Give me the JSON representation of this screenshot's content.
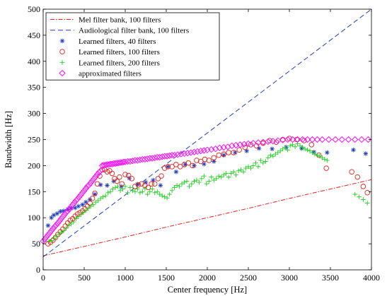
{
  "chart_data": {
    "type": "scatter",
    "title": "",
    "xlabel": "Center frequency [Hz]",
    "ylabel": "Bandwidth [Hz]",
    "xlim": [
      0,
      4000
    ],
    "ylim": [
      0,
      500
    ],
    "x_ticks": [
      0,
      500,
      1000,
      1500,
      2000,
      2500,
      3000,
      3500,
      4000
    ],
    "y_ticks": [
      0,
      50,
      100,
      150,
      200,
      250,
      300,
      350,
      400,
      450,
      500
    ],
    "x_tick_labels": [
      "0",
      "500",
      "1000",
      "1500",
      "2000",
      "2500",
      "3000",
      "3500",
      "4000"
    ],
    "y_tick_labels": [
      "0",
      "50",
      "100",
      "150",
      "200",
      "250",
      "300",
      "350",
      "400",
      "450",
      "500"
    ],
    "grid": false,
    "legend_position": "top-left",
    "series": [
      {
        "name": "Mel filter bank, 100 filters",
        "kind": "line",
        "linestyle": "dashdot",
        "color": "#e3211c",
        "x": [
          0,
          500,
          1000,
          1500,
          2000,
          2500,
          3000,
          3500,
          4000
        ],
        "y": [
          27,
          45,
          63,
          82,
          100,
          118,
          137,
          155,
          173
        ]
      },
      {
        "name": "Audiological filter bank, 100 filters",
        "kind": "line",
        "linestyle": "dashed",
        "color": "#1f3fbf",
        "x": [
          0,
          4000
        ],
        "y": [
          25,
          500
        ]
      },
      {
        "name": "Learned filters, 40 filters",
        "kind": "scatter",
        "marker": "asterisk",
        "color": "#1f3fbf",
        "x": [
          60,
          100,
          130,
          170,
          210,
          250,
          300,
          340,
          390,
          430,
          480,
          520,
          570,
          630,
          700,
          780,
          860,
          950,
          1050,
          1150,
          1250,
          1340,
          1430,
          1520,
          1620,
          1730,
          1840,
          1960,
          2080,
          2200,
          2340,
          2480,
          2630,
          2790,
          2960,
          3150,
          3300,
          3460,
          3780,
          3930
        ],
        "y": [
          85,
          100,
          105,
          108,
          112,
          113,
          116,
          118,
          119,
          122,
          125,
          130,
          135,
          145,
          163,
          162,
          170,
          160,
          176,
          164,
          168,
          172,
          162,
          198,
          188,
          202,
          200,
          203,
          208,
          220,
          225,
          228,
          233,
          232,
          235,
          233,
          226,
          225,
          230,
          223
        ]
      },
      {
        "name": "Learned filters, 100 filters",
        "kind": "scatter",
        "marker": "circle",
        "color": "#e3211c",
        "x": [
          60,
          90,
          120,
          150,
          180,
          210,
          240,
          270,
          300,
          330,
          360,
          390,
          420,
          450,
          480,
          510,
          540,
          570,
          600,
          630,
          660,
          690,
          720,
          750,
          780,
          810,
          840,
          870,
          900,
          930,
          960,
          1000,
          1040,
          1080,
          1120,
          1160,
          1200,
          1240,
          1280,
          1320,
          1360,
          1400,
          1440,
          1480,
          1520,
          1570,
          1620,
          1670,
          1720,
          1770,
          1820,
          1870,
          1920,
          1970,
          2020,
          2080,
          2140,
          2200,
          2260,
          2320,
          2390,
          2460,
          2530,
          2600,
          2680,
          2760,
          2840,
          2920,
          3000,
          3090,
          3180,
          3270,
          3360,
          3450,
          3760,
          3830,
          3900,
          3950
        ],
        "y": [
          50,
          53,
          57,
          62,
          68,
          73,
          78,
          84,
          90,
          95,
          98,
          103,
          107,
          110,
          113,
          117,
          122,
          128,
          137,
          147,
          165,
          180,
          192,
          192,
          188,
          190,
          185,
          175,
          170,
          178,
          165,
          183,
          181,
          175,
          160,
          163,
          165,
          162,
          158,
          165,
          165,
          175,
          180,
          195,
          198,
          198,
          202,
          198,
          202,
          205,
          200,
          210,
          208,
          212,
          210,
          215,
          220,
          222,
          225,
          225,
          230,
          235,
          240,
          238,
          243,
          248,
          245,
          250,
          252,
          250,
          248,
          240,
          220,
          195,
          188,
          178,
          160,
          148
        ]
      },
      {
        "name": "Learned filters, 200 filters",
        "kind": "scatter",
        "marker": "plus",
        "color": "#1fcc1f",
        "x": [
          70,
          100,
          130,
          160,
          190,
          220,
          250,
          280,
          310,
          340,
          370,
          400,
          430,
          460,
          490,
          520,
          550,
          580,
          610,
          640,
          670,
          700,
          730,
          760,
          790,
          820,
          850,
          880,
          910,
          940,
          970,
          1000,
          1030,
          1060,
          1090,
          1120,
          1150,
          1180,
          1210,
          1240,
          1270,
          1300,
          1330,
          1360,
          1390,
          1420,
          1450,
          1480,
          1510,
          1540,
          1570,
          1600,
          1630,
          1660,
          1690,
          1720,
          1750,
          1780,
          1810,
          1840,
          1870,
          1900,
          1930,
          1960,
          1990,
          2020,
          2050,
          2080,
          2110,
          2140,
          2170,
          2200,
          2230,
          2260,
          2290,
          2320,
          2350,
          2380,
          2410,
          2440,
          2470,
          2500,
          2530,
          2560,
          2590,
          2620,
          2650,
          2680,
          2710,
          2740,
          2770,
          2800,
          2830,
          2860,
          2890,
          2920,
          2950,
          2980,
          3010,
          3040,
          3070,
          3100,
          3130,
          3160,
          3190,
          3220,
          3250,
          3280,
          3310,
          3340,
          3370,
          3400,
          3430,
          3460,
          3800,
          3850,
          3900,
          3950
        ],
        "y": [
          55,
          56,
          60,
          64,
          68,
          72,
          75,
          80,
          85,
          88,
          92,
          98,
          102,
          106,
          110,
          114,
          118,
          122,
          125,
          130,
          133,
          137,
          140,
          142,
          148,
          150,
          155,
          158,
          160,
          152,
          155,
          160,
          148,
          158,
          152,
          150,
          155,
          148,
          150,
          156,
          145,
          150,
          155,
          148,
          150,
          145,
          142,
          140,
          138,
          145,
          152,
          158,
          162,
          160,
          165,
          168,
          170,
          160,
          165,
          170,
          172,
          168,
          175,
          180,
          165,
          170,
          178,
          172,
          175,
          180,
          178,
          182,
          185,
          178,
          185,
          188,
          182,
          190,
          192,
          188,
          195,
          198,
          195,
          200,
          205,
          198,
          210,
          205,
          208,
          215,
          220,
          218,
          222,
          225,
          228,
          232,
          235,
          230,
          238,
          240,
          236,
          242,
          238,
          235,
          232,
          230,
          228,
          225,
          222,
          220,
          218,
          215,
          212,
          210,
          145,
          140,
          135,
          128
        ]
      },
      {
        "name": "approximated filters",
        "kind": "scatter",
        "marker": "diamond",
        "color": "#ff00ff",
        "x": [
          0,
          20,
          40,
          60,
          80,
          100,
          120,
          140,
          160,
          180,
          200,
          220,
          240,
          260,
          280,
          300,
          320,
          340,
          360,
          380,
          400,
          420,
          440,
          460,
          480,
          500,
          520,
          540,
          560,
          580,
          600,
          620,
          640,
          660,
          680,
          700,
          720,
          740,
          760,
          780,
          800,
          820,
          840,
          860,
          880,
          900,
          920,
          940,
          960,
          980,
          1000,
          1030,
          1060,
          1090,
          1120,
          1150,
          1180,
          1210,
          1240,
          1270,
          1300,
          1330,
          1360,
          1390,
          1420,
          1450,
          1480,
          1510,
          1540,
          1570,
          1600,
          1640,
          1680,
          1720,
          1760,
          1800,
          1840,
          1880,
          1920,
          1960,
          2000,
          2050,
          2100,
          2150,
          2200,
          2250,
          2300,
          2350,
          2400,
          2450,
          2500,
          2560,
          2620,
          2680,
          2740,
          2800,
          2860,
          2920,
          2980,
          3040,
          3100,
          3160,
          3220,
          3280,
          3340,
          3400,
          3480,
          3560,
          3640,
          3720,
          3800,
          3880,
          3960
        ],
        "y": [
          55,
          59,
          63,
          67,
          71,
          75,
          79,
          83,
          86,
          90,
          94,
          98,
          102,
          106,
          110,
          113,
          117,
          121,
          125,
          129,
          133,
          136,
          140,
          144,
          148,
          152,
          156,
          160,
          163,
          167,
          171,
          175,
          179,
          183,
          187,
          190,
          200,
          201,
          201,
          202,
          202,
          203,
          203,
          204,
          204,
          205,
          205,
          206,
          206,
          207,
          207,
          208,
          208,
          209,
          210,
          210,
          211,
          212,
          212,
          213,
          214,
          214,
          215,
          216,
          216,
          217,
          218,
          218,
          219,
          220,
          220,
          221,
          222,
          223,
          224,
          225,
          226,
          227,
          228,
          229,
          230,
          231,
          232,
          234,
          235,
          236,
          238,
          239,
          240,
          241,
          242,
          243,
          244,
          245,
          246,
          247,
          248,
          249,
          250,
          250,
          250,
          250,
          250,
          250,
          250,
          250,
          250,
          250,
          250,
          250,
          250,
          250,
          250
        ]
      }
    ]
  }
}
